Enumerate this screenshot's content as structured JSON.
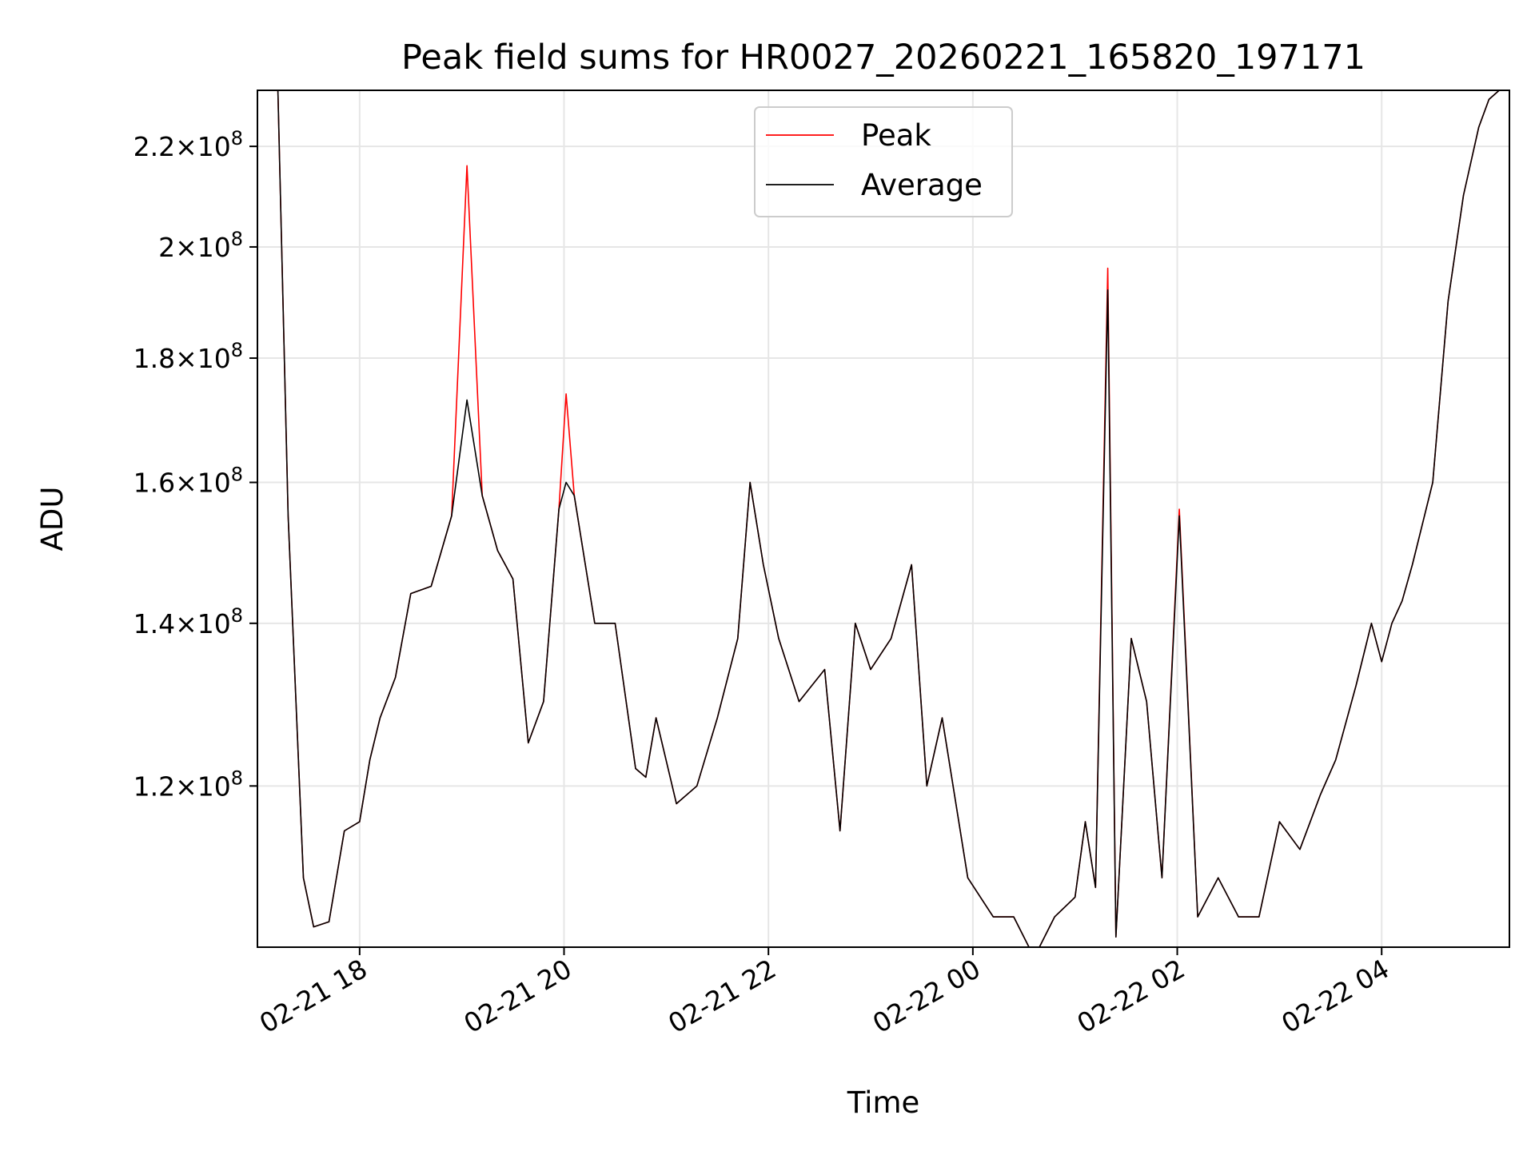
{
  "chart_data": {
    "type": "line",
    "title": "Peak field sums for HR0027_20260221_165820_197171",
    "xlabel": "Time",
    "ylabel": "ADU",
    "y_scale": "log",
    "ylim": [
      103000000,
      232000000
    ],
    "xlim_hours_from_0221_1700": [
      0,
      12.25
    ],
    "x_ticks": [
      {
        "hours": 1,
        "label": "02-21 18"
      },
      {
        "hours": 3,
        "label": "02-21 20"
      },
      {
        "hours": 5,
        "label": "02-21 22"
      },
      {
        "hours": 7,
        "label": "02-22 00"
      },
      {
        "hours": 9,
        "label": "02-22 02"
      },
      {
        "hours": 11,
        "label": "02-22 04"
      }
    ],
    "y_ticks": [
      {
        "value": 120000000,
        "mantissa": "1.2",
        "base": "10",
        "exp": "8"
      },
      {
        "value": 140000000,
        "mantissa": "1.4",
        "base": "10",
        "exp": "8"
      },
      {
        "value": 160000000,
        "mantissa": "1.6",
        "base": "10",
        "exp": "8"
      },
      {
        "value": 180000000,
        "mantissa": "1.8",
        "base": "10",
        "exp": "8"
      },
      {
        "value": 200000000,
        "mantissa": "2",
        "base": "10",
        "exp": "8"
      },
      {
        "value": 220000000,
        "mantissa": "2.2",
        "base": "10",
        "exp": "8"
      }
    ],
    "legend": {
      "location": "upper center",
      "entries": [
        "Peak",
        "Average"
      ]
    },
    "series": [
      {
        "name": "Peak",
        "color": "#ff0000",
        "x_hours": [
          0.2,
          0.3,
          0.45,
          0.55,
          0.7,
          0.85,
          1.0,
          1.1,
          1.2,
          1.35,
          1.5,
          1.7,
          1.9,
          2.05,
          2.2,
          2.35,
          2.5,
          2.65,
          2.8,
          2.95,
          3.02,
          3.1,
          3.3,
          3.5,
          3.7,
          3.8,
          3.9,
          4.1,
          4.3,
          4.5,
          4.7,
          4.82,
          4.95,
          5.1,
          5.3,
          5.55,
          5.7,
          5.85,
          6.0,
          6.2,
          6.4,
          6.55,
          6.7,
          6.95,
          7.2,
          7.4,
          7.6,
          7.8,
          8.0,
          8.1,
          8.2,
          8.32,
          8.4,
          8.55,
          8.7,
          8.85,
          9.02,
          9.2,
          9.4,
          9.6,
          9.8,
          10.0,
          10.2,
          10.4,
          10.55,
          10.75,
          10.9,
          11.0,
          11.1,
          11.2,
          11.3,
          11.5,
          11.65,
          11.8,
          11.95,
          12.05,
          12.15
        ],
        "y": [
          232000000,
          155000000,
          110000000,
          105000000,
          105500000,
          115000000,
          116000000,
          123000000,
          128000000,
          133000000,
          144000000,
          145000000,
          155000000,
          216000000,
          158000000,
          150000000,
          146000000,
          125000000,
          130000000,
          156000000,
          174000000,
          158000000,
          140000000,
          140000000,
          122000000,
          121000000,
          128000000,
          118000000,
          120000000,
          128000000,
          138000000,
          160000000,
          148000000,
          138000000,
          130000000,
          134000000,
          115000000,
          140000000,
          134000000,
          138000000,
          148000000,
          120000000,
          128000000,
          110000000,
          106000000,
          106000000,
          102000000,
          106000000,
          108000000,
          116000000,
          109000000,
          196000000,
          104000000,
          138000000,
          130000000,
          110000000,
          156000000,
          106000000,
          110000000,
          106000000,
          106000000,
          116000000,
          113000000,
          119000000,
          123000000,
          132000000,
          140000000,
          135000000,
          140000000,
          143000000,
          148000000,
          160000000,
          190000000,
          210000000,
          224000000,
          230000000,
          232000000
        ]
      },
      {
        "name": "Average",
        "color": "#000000",
        "x_hours": [
          0.2,
          0.3,
          0.45,
          0.55,
          0.7,
          0.85,
          1.0,
          1.1,
          1.2,
          1.35,
          1.5,
          1.7,
          1.9,
          2.05,
          2.2,
          2.35,
          2.5,
          2.65,
          2.8,
          2.95,
          3.02,
          3.1,
          3.3,
          3.5,
          3.7,
          3.8,
          3.9,
          4.1,
          4.3,
          4.5,
          4.7,
          4.82,
          4.95,
          5.1,
          5.3,
          5.55,
          5.7,
          5.85,
          6.0,
          6.2,
          6.4,
          6.55,
          6.7,
          6.95,
          7.2,
          7.4,
          7.6,
          7.8,
          8.0,
          8.1,
          8.2,
          8.32,
          8.4,
          8.55,
          8.7,
          8.85,
          9.02,
          9.2,
          9.4,
          9.6,
          9.8,
          10.0,
          10.2,
          10.4,
          10.55,
          10.75,
          10.9,
          11.0,
          11.1,
          11.2,
          11.3,
          11.5,
          11.65,
          11.8,
          11.95,
          12.05,
          12.15
        ],
        "y": [
          232000000,
          155000000,
          110000000,
          105000000,
          105500000,
          115000000,
          116000000,
          123000000,
          128000000,
          133000000,
          144000000,
          145000000,
          155000000,
          173000000,
          158000000,
          150000000,
          146000000,
          125000000,
          130000000,
          156000000,
          160000000,
          158000000,
          140000000,
          140000000,
          122000000,
          121000000,
          128000000,
          118000000,
          120000000,
          128000000,
          138000000,
          160000000,
          148000000,
          138000000,
          130000000,
          134000000,
          115000000,
          140000000,
          134000000,
          138000000,
          148000000,
          120000000,
          128000000,
          110000000,
          106000000,
          106000000,
          102000000,
          106000000,
          108000000,
          116000000,
          109000000,
          192000000,
          104000000,
          138000000,
          130000000,
          110000000,
          155000000,
          106000000,
          110000000,
          106000000,
          106000000,
          116000000,
          113000000,
          119000000,
          123000000,
          132000000,
          140000000,
          135000000,
          140000000,
          143000000,
          148000000,
          160000000,
          190000000,
          210000000,
          224000000,
          230000000,
          232000000
        ]
      }
    ]
  }
}
